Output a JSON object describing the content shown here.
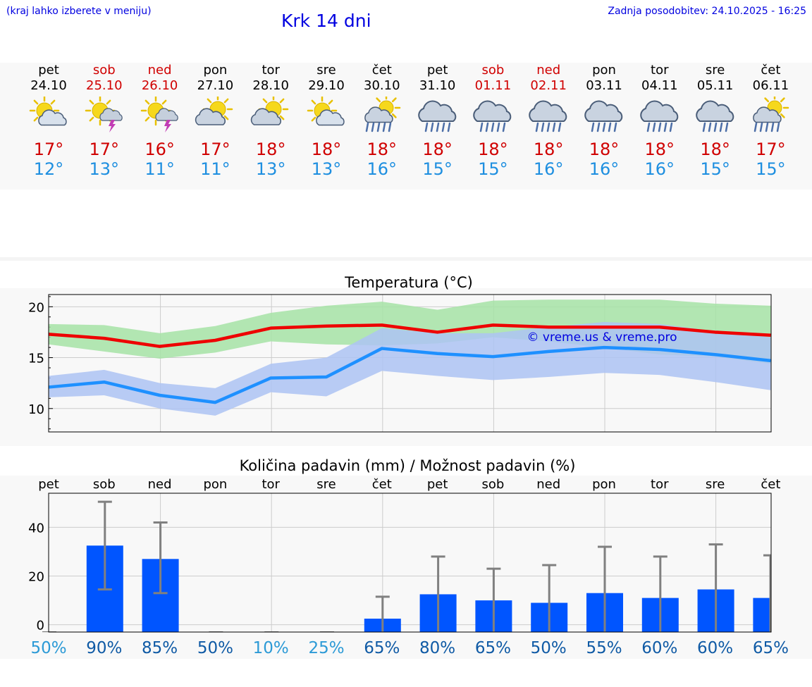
{
  "header": {
    "note": "(kraj lahko izberete v meniju)",
    "title": "Krk 14 dni",
    "updated": "Zadnja posodobitev: 24.10.2025 - 16:25"
  },
  "days": [
    {
      "name": "pet",
      "date": "24.10",
      "weekend": false,
      "icon": "sun-cloud-icon",
      "tmax": "17°",
      "tmin": "12°"
    },
    {
      "name": "sob",
      "date": "25.10",
      "weekend": true,
      "icon": "sun-storm-icon",
      "tmax": "17°",
      "tmin": "13°"
    },
    {
      "name": "ned",
      "date": "26.10",
      "weekend": true,
      "icon": "sun-storm-icon",
      "tmax": "16°",
      "tmin": "11°"
    },
    {
      "name": "pon",
      "date": "27.10",
      "weekend": false,
      "icon": "cloud-sun-icon",
      "tmax": "17°",
      "tmin": "11°"
    },
    {
      "name": "tor",
      "date": "28.10",
      "weekend": false,
      "icon": "cloud-sun-icon",
      "tmax": "18°",
      "tmin": "13°"
    },
    {
      "name": "sre",
      "date": "29.10",
      "weekend": false,
      "icon": "sun-cloud-icon",
      "tmax": "18°",
      "tmin": "13°"
    },
    {
      "name": "čet",
      "date": "30.10",
      "weekend": false,
      "icon": "sun-rain-icon",
      "tmax": "18°",
      "tmin": "16°"
    },
    {
      "name": "pet",
      "date": "31.10",
      "weekend": false,
      "icon": "rain-cloud-icon",
      "tmax": "18°",
      "tmin": "15°"
    },
    {
      "name": "sob",
      "date": "01.11",
      "weekend": true,
      "icon": "rain-cloud-icon",
      "tmax": "18°",
      "tmin": "15°"
    },
    {
      "name": "ned",
      "date": "02.11",
      "weekend": true,
      "icon": "rain-cloud-icon",
      "tmax": "18°",
      "tmin": "16°"
    },
    {
      "name": "pon",
      "date": "03.11",
      "weekend": false,
      "icon": "rain-cloud-icon",
      "tmax": "18°",
      "tmin": "16°"
    },
    {
      "name": "tor",
      "date": "04.11",
      "weekend": false,
      "icon": "rain-cloud-icon",
      "tmax": "18°",
      "tmin": "16°"
    },
    {
      "name": "sre",
      "date": "05.11",
      "weekend": false,
      "icon": "rain-cloud-icon",
      "tmax": "18°",
      "tmin": "15°"
    },
    {
      "name": "čet",
      "date": "06.11",
      "weekend": false,
      "icon": "sun-rain-icon",
      "tmax": "17°",
      "tmin": "15°"
    }
  ],
  "colors": {
    "max_line": "#ee0000",
    "max_band": "#a6e3a6",
    "min_line": "#1e90ff",
    "min_band": "#adc3f3",
    "bar": "#0055ff",
    "error": "#808080",
    "title": "#0000e0",
    "weekend": "#d00000"
  },
  "chart_data": [
    {
      "type": "line",
      "title": "Temperatura (°C)",
      "xlabel": "",
      "ylabel": "",
      "ylim": [
        7.7,
        21.2
      ],
      "yticks": [
        10,
        15,
        20
      ],
      "watermark": "© vreme.us & vreme.pro",
      "grid": true,
      "x": [
        0,
        1,
        2,
        3,
        4,
        5,
        6,
        7,
        8,
        9,
        10,
        11,
        12,
        13
      ],
      "series": [
        {
          "role": "max",
          "values": [
            17.3,
            16.9,
            16.1,
            16.7,
            17.9,
            18.1,
            18.2,
            17.5,
            18.2,
            18.0,
            18.0,
            18.0,
            17.5,
            17.2
          ],
          "band_low": [
            16.3,
            15.6,
            14.9,
            15.5,
            16.6,
            16.3,
            16.2,
            16.4,
            17.0,
            16.6,
            16.0,
            15.3,
            15.1,
            14.4
          ],
          "band_high": [
            18.3,
            18.2,
            17.4,
            18.1,
            19.4,
            20.1,
            20.5,
            19.7,
            20.6,
            20.7,
            20.7,
            20.7,
            20.3,
            20.1
          ]
        },
        {
          "role": "min",
          "values": [
            12.1,
            12.6,
            11.3,
            10.6,
            13.0,
            13.1,
            15.9,
            15.4,
            15.1,
            15.6,
            16.0,
            15.8,
            15.3,
            14.7
          ],
          "band_low": [
            11.1,
            11.3,
            10.0,
            9.3,
            11.6,
            11.2,
            13.7,
            13.2,
            12.8,
            13.1,
            13.5,
            13.3,
            12.6,
            11.8
          ],
          "band_high": [
            13.2,
            13.8,
            12.5,
            12.0,
            14.4,
            15.0,
            17.9,
            17.4,
            17.4,
            18.0,
            18.5,
            18.3,
            17.6,
            17.0
          ]
        }
      ]
    },
    {
      "type": "bar",
      "title": "Količina padavin (mm) / Možnost padavin (%)",
      "xlabel": "",
      "ylabel": "",
      "ylim": [
        -3,
        54
      ],
      "yticks": [
        0,
        20,
        40
      ],
      "grid": true,
      "categories": [
        "pet",
        "sob",
        "ned",
        "pon",
        "tor",
        "sre",
        "čet",
        "pet",
        "sob",
        "ned",
        "pon",
        "tor",
        "sre",
        "čet"
      ],
      "values": [
        0,
        32.5,
        27,
        0,
        0,
        0,
        2.5,
        12.5,
        10,
        9,
        13,
        11,
        14.5,
        11
      ],
      "error_high": [
        0,
        50.5,
        42,
        0,
        0,
        0,
        11.5,
        28,
        23,
        24.5,
        32,
        28,
        33,
        28.5
      ],
      "error_low": [
        0,
        14.5,
        13,
        0,
        0,
        0,
        0,
        0,
        0,
        0,
        0,
        0,
        0,
        0
      ],
      "probability": [
        "50%",
        "90%",
        "85%",
        "50%",
        "10%",
        "25%",
        "65%",
        "80%",
        "65%",
        "50%",
        "55%",
        "60%",
        "60%",
        "65%"
      ],
      "probability_colors": [
        "#2c9ad6",
        "#0f5aa5",
        "#0f5aa5",
        "#0f5aa5",
        "#2c9ad6",
        "#2c9ad6",
        "#0f5aa5",
        "#0f5aa5",
        "#0f5aa5",
        "#0f5aa5",
        "#0f5aa5",
        "#0f5aa5",
        "#0f5aa5",
        "#0f5aa5"
      ]
    }
  ]
}
